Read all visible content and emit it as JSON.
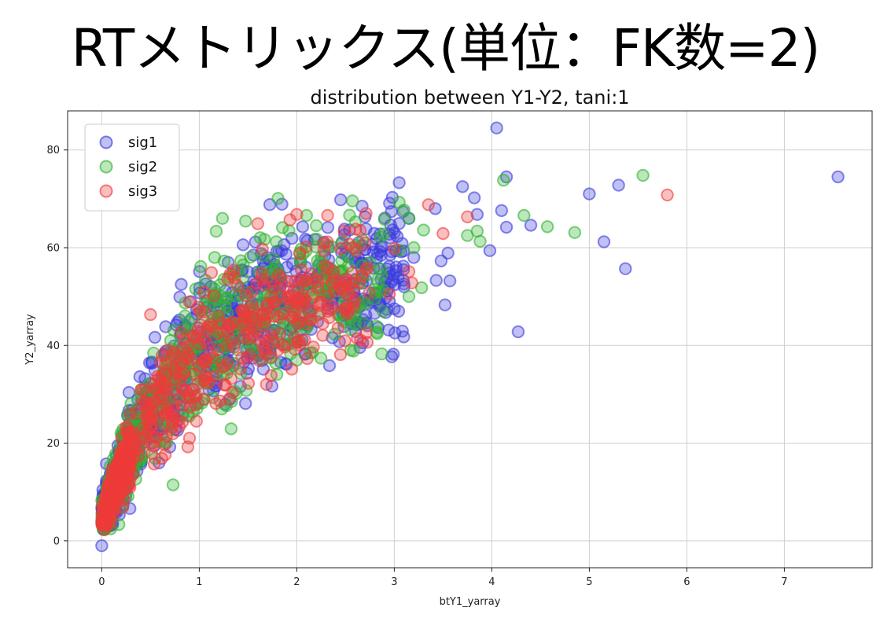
{
  "slide": {
    "title": "RTメトリックス(単位：FK数=2)"
  },
  "chart_data": {
    "type": "scatter",
    "title": "distribution between Y1-Y2, tani:1",
    "xlabel": "btY1_yarray",
    "ylabel": "Y2_yarray",
    "xlim": [
      -0.35,
      7.9
    ],
    "ylim": [
      -5.5,
      88
    ],
    "xticks": [
      0,
      1,
      2,
      3,
      4,
      5,
      6,
      7
    ],
    "yticks": [
      0,
      20,
      40,
      60,
      80
    ],
    "grid": true,
    "legend_position": "upper-left",
    "cloud_note": "dense overlapping point clouds near the origin are rendered procedurally from the described shape; outlier points are listed explicitly",
    "series": [
      {
        "name": "sig1",
        "color": "#3b3bde",
        "generated_cloud": {
          "count": 900,
          "x_max": 3.1,
          "y_scale": 52,
          "y_spread": 7,
          "seed": 11
        },
        "points": [
          [
            0,
            -1
          ],
          [
            4.05,
            84.5
          ],
          [
            7.55,
            74.5
          ],
          [
            3.05,
            73.3
          ],
          [
            3.7,
            72.5
          ],
          [
            4.15,
            74.5
          ],
          [
            5.3,
            72.8
          ],
          [
            5.0,
            71
          ],
          [
            3.82,
            70.2
          ],
          [
            2.45,
            69.8
          ],
          [
            2.98,
            70.3
          ],
          [
            4.1,
            67.6
          ],
          [
            3.42,
            68
          ],
          [
            3.85,
            66.8
          ],
          [
            2.7,
            66.3
          ],
          [
            2.97,
            67.4
          ],
          [
            3.15,
            66
          ],
          [
            2.67,
            68.5
          ],
          [
            4.15,
            64.2
          ],
          [
            4.4,
            64.6
          ],
          [
            3.0,
            63
          ],
          [
            3.03,
            62.3
          ],
          [
            5.15,
            61.2
          ],
          [
            3.98,
            59.4
          ],
          [
            3.55,
            58.9
          ],
          [
            3.48,
            57.3
          ],
          [
            5.37,
            55.7
          ],
          [
            3.57,
            53.2
          ],
          [
            3.43,
            53.3
          ],
          [
            3.52,
            48.3
          ],
          [
            4.27,
            42.8
          ],
          [
            3.2,
            58
          ],
          [
            3.1,
            52
          ],
          [
            2.95,
            49
          ],
          [
            3.0,
            47.5
          ],
          [
            2.9,
            53
          ],
          [
            2.85,
            48
          ]
        ]
      },
      {
        "name": "sig2",
        "color": "#2fb32f",
        "generated_cloud": {
          "count": 650,
          "x_max": 2.9,
          "y_scale": 51,
          "y_spread": 7,
          "seed": 23
        },
        "points": [
          [
            5.55,
            74.8
          ],
          [
            4.12,
            73.8
          ],
          [
            3.1,
            67.7
          ],
          [
            4.33,
            66.6
          ],
          [
            4.57,
            64.3
          ],
          [
            4.85,
            63.1
          ],
          [
            3.75,
            62.5
          ],
          [
            3.85,
            63.4
          ],
          [
            3.88,
            61.3
          ],
          [
            3.3,
            63.6
          ],
          [
            3.15,
            66
          ],
          [
            3.2,
            60
          ],
          [
            3.05,
            59.5
          ],
          [
            3.28,
            51.8
          ],
          [
            3.15,
            50
          ],
          [
            2.82,
            42.7
          ],
          [
            2.1,
            66.6
          ],
          [
            2.2,
            64.5
          ],
          [
            3.05,
            69.3
          ],
          [
            2.0,
            37
          ],
          [
            2.6,
            46
          ],
          [
            2.7,
            48.5
          ],
          [
            2.55,
            45.5
          ]
        ]
      },
      {
        "name": "sig3",
        "color": "#ef3b3b",
        "generated_cloud": {
          "count": 620,
          "x_max": 2.75,
          "y_scale": 50,
          "y_spread": 6,
          "seed": 37
        },
        "points": [
          [
            5.8,
            70.8
          ],
          [
            3.35,
            68.8
          ],
          [
            3.75,
            66.3
          ],
          [
            3.5,
            62.9
          ],
          [
            3.15,
            55.1
          ],
          [
            3.18,
            52.8
          ],
          [
            2.0,
            66.8
          ],
          [
            1.93,
            65.7
          ],
          [
            1.6,
            64.9
          ],
          [
            0.5,
            46.3
          ],
          [
            0.9,
            21
          ],
          [
            0.97,
            24.5
          ],
          [
            0,
            4
          ],
          [
            0.05,
            6
          ],
          [
            2.95,
            50.5
          ],
          [
            3.0,
            59.8
          ],
          [
            2.65,
            63.5
          ],
          [
            2.7,
            61
          ],
          [
            1.05,
            29
          ]
        ]
      }
    ]
  }
}
